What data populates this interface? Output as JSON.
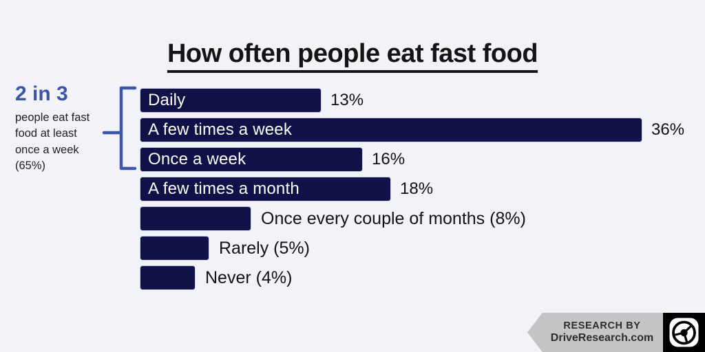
{
  "title": "How often people eat fast food",
  "annotation": {
    "headline": "2 in 3",
    "body": "people eat fast food at least once a week (65%)"
  },
  "chart_data": {
    "type": "bar",
    "orientation": "horizontal",
    "title": "How often people eat fast food",
    "categories": [
      "Daily",
      "A few times a week",
      "Once a week",
      "A few times a month",
      "Once every couple of months",
      "Rarely",
      "Never"
    ],
    "values": [
      13,
      36,
      16,
      18,
      8,
      5,
      4
    ],
    "value_suffix": "%",
    "label_style": [
      "inside",
      "inside",
      "inside",
      "inside",
      "outside",
      "outside",
      "outside"
    ],
    "xlim": [
      0,
      40
    ],
    "axes_shown": false,
    "bar_color": "#0f1147",
    "annotation_note": "2 in 3 people eat fast food at least once a week (65%)"
  },
  "footer": {
    "line1": "RESEARCH BY",
    "line2": "DriveResearch.com",
    "logo": "steering-wheel-icon"
  },
  "colors": {
    "background": "#f2f3f8",
    "bar": "#0f1147",
    "accent_blue": "#3b54a4",
    "bracket_blue": "#3d56a8",
    "title_text": "#141414",
    "ribbon_gray": "#c5c5c5",
    "ribbon_text": "#2c2c2c"
  }
}
